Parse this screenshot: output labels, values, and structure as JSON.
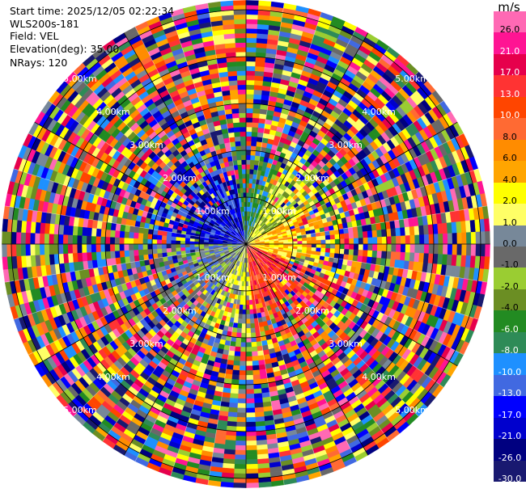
{
  "info": {
    "start_time": "Start time: 2025/12/05 02:22:34",
    "station": "WLS200s-181",
    "field": "Field: VEL",
    "elevation": "Elevation(deg): 35.00",
    "nrays": "NRays: 120"
  },
  "colorbar": {
    "unit": "m/s",
    "levels": [
      {
        "label": "26.0",
        "color": "#ff69b4"
      },
      {
        "label": "21.0",
        "color": "#ff1493"
      },
      {
        "label": "17.0",
        "color": "#e6004c"
      },
      {
        "label": "13.0",
        "color": "#ff3333"
      },
      {
        "label": "10.0",
        "color": "#ff4500"
      },
      {
        "label": "8.0",
        "color": "#ff6a33"
      },
      {
        "label": "6.0",
        "color": "#ff8c00"
      },
      {
        "label": "4.0",
        "color": "#ffa500"
      },
      {
        "label": "2.0",
        "color": "#ffff00"
      },
      {
        "label": "1.0",
        "color": "#ffff66"
      },
      {
        "label": "0.0",
        "color": "#778899"
      },
      {
        "label": "-1.0",
        "color": "#696969"
      },
      {
        "label": "-2.0",
        "color": "#9acd32"
      },
      {
        "label": "-4.0",
        "color": "#6b8e23"
      },
      {
        "label": "-6.0",
        "color": "#228b22"
      },
      {
        "label": "-8.0",
        "color": "#2e8b57"
      },
      {
        "label": "-10.0",
        "color": "#1e90ff"
      },
      {
        "label": "-13.0",
        "color": "#4169e1"
      },
      {
        "label": "-17.0",
        "color": "#0000ff"
      },
      {
        "label": "-21.0",
        "color": "#0000cd"
      },
      {
        "label": "-26.0",
        "color": "#000080"
      },
      {
        "label": "-30.0",
        "color": "#191970"
      }
    ]
  },
  "chart_data": {
    "type": "heatmap",
    "projection": "polar (PPI)",
    "n_rays": 120,
    "range_rings_km": [
      1,
      2,
      3,
      4,
      5
    ],
    "ring_labels": [
      "1.00km",
      "2.00km",
      "3.00km",
      "4.00km",
      "5.00km"
    ],
    "spoke_azimuths_deg": [
      0,
      30,
      60,
      90,
      120,
      150,
      180,
      210,
      240,
      270,
      300,
      330
    ],
    "max_range_km": 5.2,
    "near_field_pattern": {
      "west_and_northwest": "negative velocities (-13 to -26 m/s, blue)",
      "north": "-6 to -8 m/s (green)",
      "east_and_northeast": "positive velocities (2 to 4 m/s, yellow/orange)",
      "southeast": "positive velocities (10 to 17 m/s, red/orange)",
      "south_and_southwest": "-2 to 2 m/s (yellow/olive)",
      "beyond_2km": "noisy, random velocities across full scale"
    }
  }
}
